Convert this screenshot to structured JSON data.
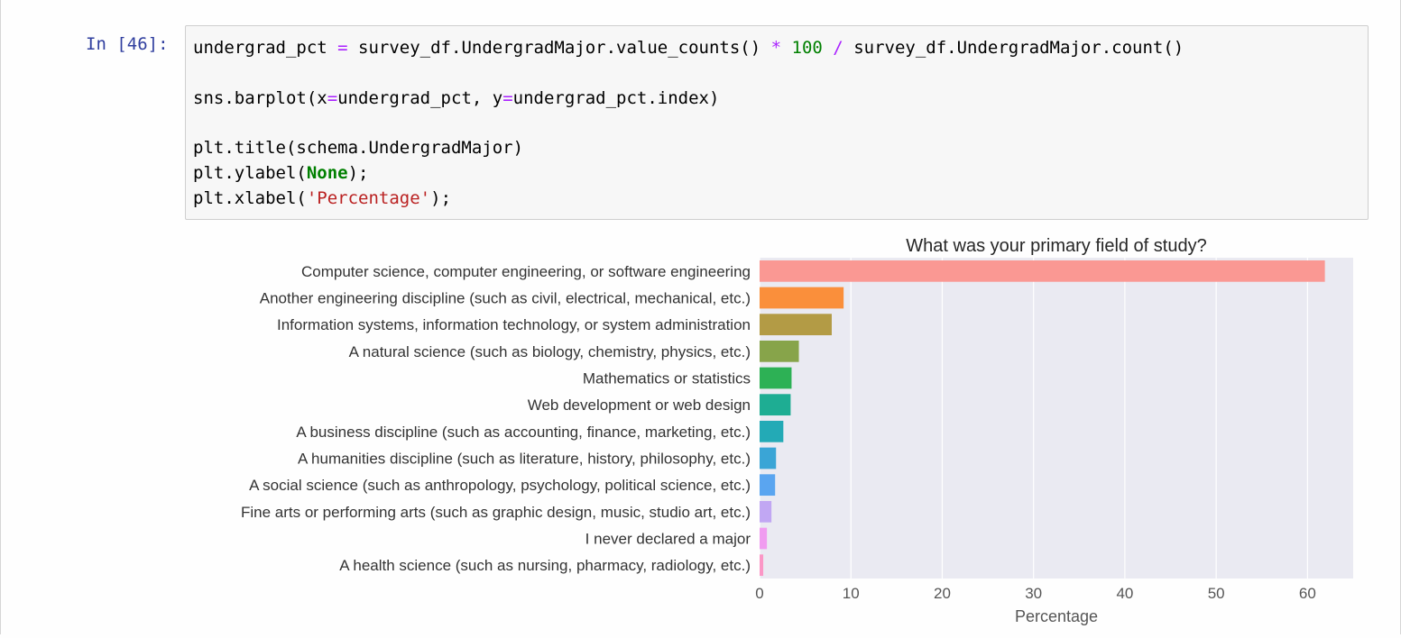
{
  "cell": {
    "prompt": "In [46]:",
    "lines": [
      [
        {
          "t": "undergrad_pct "
        },
        {
          "t": "=",
          "c": "op"
        },
        {
          "t": " survey_df.UndergradMajor.value_counts() "
        },
        {
          "t": "*",
          "c": "op"
        },
        {
          "t": " "
        },
        {
          "t": "100",
          "c": "num"
        },
        {
          "t": " "
        },
        {
          "t": "/",
          "c": "op"
        },
        {
          "t": " survey_df.UndergradMajor.count()"
        }
      ],
      [],
      [
        {
          "t": "sns.barplot(x"
        },
        {
          "t": "=",
          "c": "op"
        },
        {
          "t": "undergrad_pct, y"
        },
        {
          "t": "=",
          "c": "op"
        },
        {
          "t": "undergrad_pct.index)"
        }
      ],
      [],
      [
        {
          "t": "plt.title(schema.UndergradMajor)"
        }
      ],
      [
        {
          "t": "plt.ylabel("
        },
        {
          "t": "None",
          "c": "bold"
        },
        {
          "t": ");"
        }
      ],
      [
        {
          "t": "plt.xlabel("
        },
        {
          "t": "'Percentage'",
          "c": "str"
        },
        {
          "t": ");"
        }
      ]
    ]
  },
  "chart_data": {
    "type": "bar",
    "orientation": "horizontal",
    "title": "What was your primary field of study?",
    "xlabel": "Percentage",
    "ylabel": "",
    "xlim": [
      0,
      65
    ],
    "xticks": [
      0,
      10,
      20,
      30,
      40,
      50,
      60
    ],
    "grid": true,
    "background": "#eaeaf2",
    "categories": [
      "Computer science, computer engineering, or software engineering",
      "Another engineering discipline (such as civil, electrical, mechanical, etc.)",
      "Information systems, information technology, or system administration",
      "A natural science (such as biology, chemistry, physics, etc.)",
      "Mathematics or statistics",
      "Web development or web design",
      "A business discipline (such as accounting, finance, marketing, etc.)",
      "A humanities discipline (such as literature, history, philosophy, etc.)",
      "A social science (such as anthropology, psychology, political science, etc.)",
      "Fine arts or performing arts (such as graphic design, music, studio art, etc.)",
      "I never declared a major",
      "A health science (such as nursing, pharmacy, radiology, etc.)"
    ],
    "values": [
      61.9,
      9.2,
      7.9,
      4.3,
      3.5,
      3.4,
      2.6,
      1.8,
      1.7,
      1.3,
      0.8,
      0.4
    ],
    "colors": [
      "#fa9893",
      "#fa8f3b",
      "#b39b45",
      "#87a44a",
      "#2db155",
      "#1ead93",
      "#23aab6",
      "#3aa5d6",
      "#5aa5f0",
      "#c1a7f3",
      "#f09cf0",
      "#fb97c6"
    ]
  }
}
